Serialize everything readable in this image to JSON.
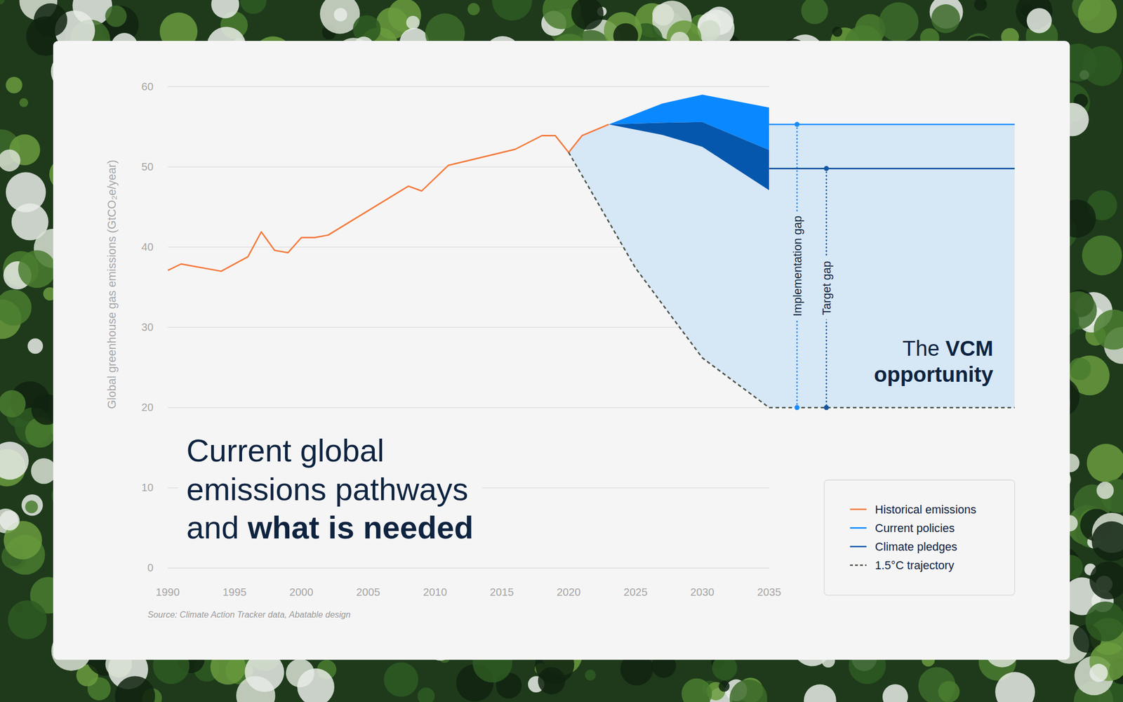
{
  "chart_data": {
    "type": "line",
    "title": "Current global emissions pathways and",
    "title_bold": "what is needed",
    "y_label": "Global greenhouse gas emissions (GtCO₂e/year)",
    "source": "Source: Climate Action Tracker data, Abatable design",
    "xlim": [
      1990,
      2035
    ],
    "ylim": [
      0,
      60
    ],
    "xticks": [
      1990,
      1995,
      2000,
      2005,
      2010,
      2015,
      2020,
      2025,
      2030,
      2035
    ],
    "yticks": [
      0,
      10,
      20,
      30,
      40,
      50,
      60
    ],
    "grid": true,
    "legend": "bottom-right",
    "series": [
      {
        "name": "Historical emissions",
        "type": "line",
        "color": "#f47a3c",
        "line_style": "solid",
        "x": [
          1990,
          1991,
          1994,
          1996,
          1997,
          1998,
          1999,
          2000,
          2001,
          2002,
          2008,
          2009,
          2011,
          2016,
          2018,
          2019,
          2020,
          2021,
          2023
        ],
        "values": [
          37.1,
          37.9,
          37.0,
          38.8,
          41.9,
          39.6,
          39.3,
          41.2,
          41.2,
          41.5,
          47.6,
          47.0,
          50.2,
          52.2,
          53.9,
          53.9,
          51.8,
          53.9,
          55.3
        ]
      },
      {
        "name": "Current policies",
        "type": "area",
        "color": "#0a88ff",
        "line_style": "solid",
        "x": [
          2023,
          2027,
          2030,
          2035
        ],
        "values": [
          55.3,
          57.9,
          59.0,
          57.4
        ],
        "low": [
          55.3,
          55.5,
          55.6,
          52.1
        ]
      },
      {
        "name": "Climate pledges",
        "type": "area",
        "color": "#0557ae",
        "line_style": "solid",
        "x": [
          2023,
          2027,
          2030,
          2035
        ],
        "values": [
          55.3,
          55.5,
          55.6,
          52.1
        ],
        "low": [
          55.3,
          54.0,
          52.5,
          47.1
        ]
      },
      {
        "name": "1.5°C trajectory",
        "type": "line",
        "color": "#4c544a",
        "line_style": "dashed",
        "x": [
          2020,
          2025,
          2030,
          2035
        ],
        "values": [
          51.8,
          37.4,
          26.2,
          20.0
        ]
      }
    ],
    "annotations": [
      {
        "text": "Implementation gap",
        "upper": 55.3,
        "lower": 20.0,
        "color": "#1a8cff"
      },
      {
        "text": "Target gap",
        "upper": 49.8,
        "lower": 20.0,
        "color": "#1557a0"
      }
    ],
    "opportunity_label": [
      "The",
      "VCM",
      "opportunity"
    ]
  }
}
